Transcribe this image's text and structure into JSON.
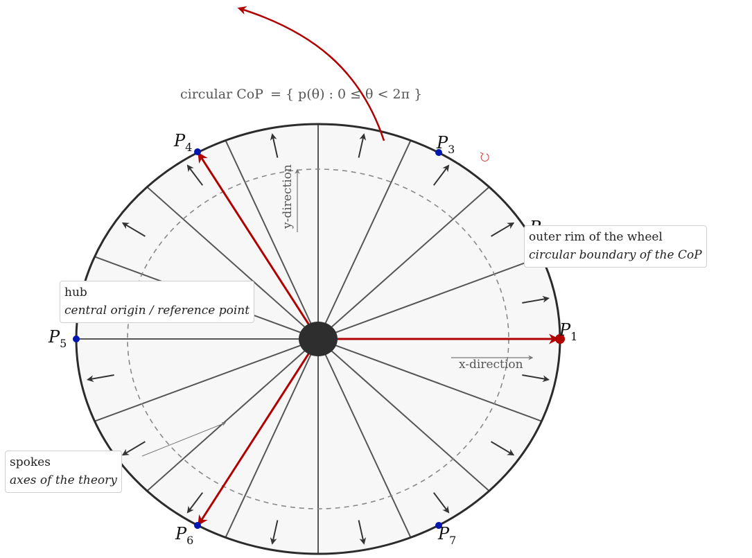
{
  "formula": {
    "lead": "circular CoP",
    "rest": "= { p(θ) : 0 ≤ θ < 2π }"
  },
  "directions": {
    "y_label": "y-direction",
    "x_label": "x-direction"
  },
  "points": [
    {
      "id": "P1",
      "letter": "P",
      "index": "1"
    },
    {
      "id": "P2",
      "letter": "P",
      "index": "2"
    },
    {
      "id": "P3",
      "letter": "P",
      "index": "3"
    },
    {
      "id": "P4",
      "letter": "P",
      "index": "4"
    },
    {
      "id": "P5",
      "letter": "P",
      "index": "5"
    },
    {
      "id": "P6",
      "letter": "P",
      "index": "6"
    },
    {
      "id": "P7",
      "letter": "P",
      "index": "7"
    }
  ],
  "callouts": {
    "hub": {
      "title": "hub",
      "subtitle": "central origin / reference point"
    },
    "rim": {
      "title": "outer rim of the wheel",
      "subtitle": "circular boundary of the CoP"
    },
    "spokes": {
      "title": "spokes",
      "subtitle": "axes of the theory"
    }
  },
  "rotation_icon": "rotate-icon",
  "colors": {
    "rim": "#2b2b2b",
    "spoke": "#555555",
    "accent_red": "#b00000",
    "point_blue": "#0016b0",
    "wheel_fill": "#f7f7f7",
    "dashed": "#888888",
    "hub": "#2e2e2e"
  }
}
